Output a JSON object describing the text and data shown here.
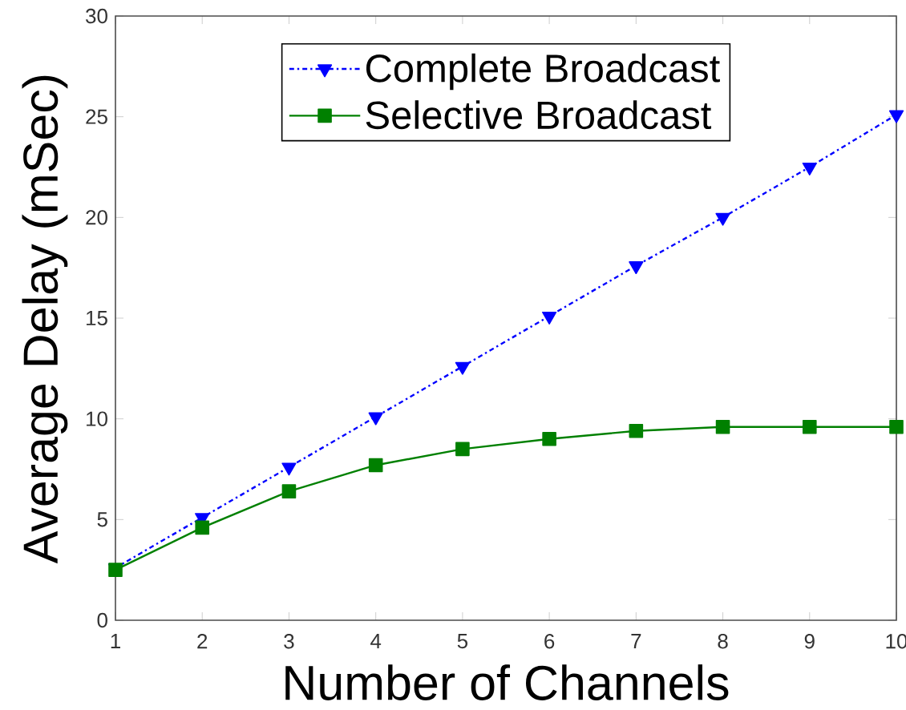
{
  "chart_data": {
    "type": "line",
    "xlabel": "Number of Channels",
    "ylabel": "Average Delay (mSec)",
    "x": [
      1,
      2,
      3,
      4,
      5,
      6,
      7,
      8,
      9,
      10
    ],
    "series": [
      {
        "name": "Complete Broadcast",
        "color": "#0000ff",
        "marker": "triangle_down",
        "line_style": "dashdot",
        "values": [
          2.6,
          5.1,
          7.6,
          10.1,
          12.6,
          15.1,
          17.6,
          20.0,
          22.5,
          25.1
        ]
      },
      {
        "name": "Selective Broadcast",
        "color": "#008000",
        "marker": "square",
        "line_style": "solid",
        "values": [
          2.5,
          4.6,
          6.4,
          7.7,
          8.5,
          9.0,
          9.4,
          9.6,
          9.6,
          9.6
        ]
      }
    ],
    "xlim": [
      1,
      10
    ],
    "ylim": [
      0,
      30
    ],
    "xticks": [
      1,
      2,
      3,
      4,
      5,
      6,
      7,
      8,
      9,
      10
    ],
    "yticks": [
      0,
      5,
      10,
      15,
      20,
      25,
      30
    ],
    "legend": "top"
  }
}
